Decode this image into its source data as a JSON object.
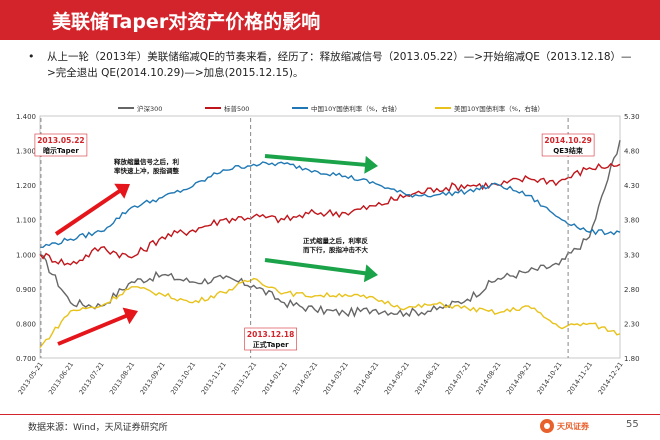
{
  "slide": {
    "title": "美联储Taper对资产价格的影响",
    "bullet": "从上一轮（2013年）美联储缩减QE的节奏来看，经历了：释放缩减信号（2013.05.22）—>开始缩减QE（2013.12.18）—>完全退出 QE(2014.10.29)—>加息(2015.12.15)。",
    "source": "数据来源：Wind，天风证券研究所",
    "brand": "天风证券",
    "page_number": "55"
  },
  "chart_data": {
    "type": "line",
    "legend_position": "top",
    "left_axis": {
      "min": 0.7,
      "max": 1.4,
      "ticks": [
        "0.700",
        "0.800",
        "0.900",
        "1.000",
        "1.100",
        "1.200",
        "1.300",
        "1.400"
      ]
    },
    "right_axis": {
      "min": 1.8,
      "max": 5.3,
      "ticks": [
        "1.80",
        "2.30",
        "2.80",
        "3.30",
        "3.80",
        "4.30",
        "4.80",
        "5.30"
      ]
    },
    "x_labels": [
      "2013-05-21",
      "2013-06-21",
      "2013-07-21",
      "2013-08-21",
      "2013-09-21",
      "2013-10-21",
      "2013-11-21",
      "2013-12-21",
      "2014-01-21",
      "2014-02-21",
      "2014-03-21",
      "2014-04-21",
      "2014-05-21",
      "2014-06-21",
      "2014-07-21",
      "2014-08-21",
      "2014-09-21",
      "2014-10-21",
      "2014-11-21",
      "2014-12-21"
    ],
    "series": [
      {
        "name": "沪深300",
        "color": "#666666",
        "axis": "left",
        "values": [
          1.0,
          0.86,
          0.85,
          0.92,
          0.94,
          0.92,
          0.93,
          0.91,
          0.86,
          0.84,
          0.83,
          0.84,
          0.83,
          0.84,
          0.87,
          0.93,
          0.95,
          0.97,
          1.05,
          1.33
        ]
      },
      {
        "name": "标普500",
        "color": "#c0161b",
        "axis": "left",
        "values": [
          1.0,
          0.97,
          1.02,
          0.99,
          1.05,
          1.07,
          1.1,
          1.11,
          1.1,
          1.12,
          1.12,
          1.14,
          1.17,
          1.19,
          1.2,
          1.2,
          1.22,
          1.21,
          1.25,
          1.26
        ]
      },
      {
        "name": "中国10Y国债利率（%，右轴）",
        "color": "#1f78b4",
        "axis": "right",
        "values": [
          3.4,
          3.52,
          3.63,
          3.98,
          4.12,
          4.28,
          4.52,
          4.6,
          4.61,
          4.51,
          4.43,
          4.32,
          4.16,
          4.16,
          4.21,
          4.31,
          4.15,
          3.83,
          3.62,
          3.62
        ]
      },
      {
        "name": "美国10Y国债利率（%，右轴）",
        "color": "#e8c21a",
        "axis": "right",
        "values": [
          1.95,
          2.48,
          2.55,
          2.83,
          2.72,
          2.6,
          2.75,
          2.95,
          2.74,
          2.7,
          2.72,
          2.65,
          2.52,
          2.58,
          2.52,
          2.45,
          2.55,
          2.25,
          2.3,
          2.15
        ]
      }
    ],
    "events": [
      {
        "label": "2013.05.22",
        "sub": "暗示Taper",
        "x_index": 0.03
      },
      {
        "label": "2013.12.18",
        "sub": "正式Taper",
        "x_index": 6.9
      },
      {
        "label": "2014.10.29",
        "sub": "QE3结束",
        "x_index": 17.3
      }
    ],
    "annotations": [
      "释放缩量信号之后，利率快速上冲，股指调整",
      "正式缩量之后，利率反而下行，股指冲击不大"
    ]
  }
}
